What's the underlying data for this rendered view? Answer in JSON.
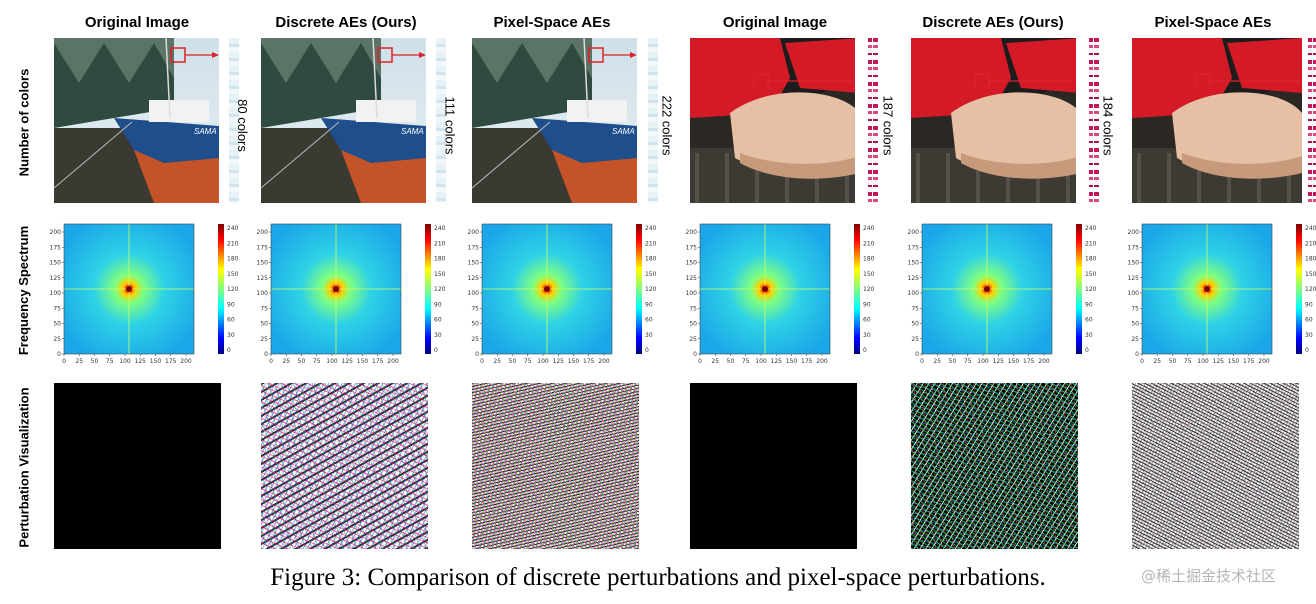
{
  "columns": [
    {
      "title": "Original Image",
      "color_count": "80 colors"
    },
    {
      "title": "Discrete AEs (Ours)",
      "color_count": "111 colors"
    },
    {
      "title": "Pixel-Space AEs",
      "color_count": "222 colors"
    },
    {
      "title": "Original Image",
      "color_count": "187 colors"
    },
    {
      "title": "Discrete AEs (Ours)",
      "color_count": "184 colors"
    },
    {
      "title": "Pixel-Space AEs",
      "color_count": ""
    }
  ],
  "row_labels": [
    "Number of colors",
    "Frequency Spectrum",
    "Perturbation Visualization"
  ],
  "ship_name_text": "SAMA",
  "spectrum": {
    "y_ticks": [
      "0",
      "25",
      "50",
      "75",
      "100",
      "125",
      "150",
      "175",
      "200"
    ],
    "x_ticks": [
      "0",
      "25",
      "50",
      "75",
      "100",
      "125",
      "150",
      "175",
      "200"
    ],
    "colorbar_ticks": [
      "240",
      "210",
      "180",
      "150",
      "120",
      "90",
      "60",
      "30",
      "0"
    ],
    "colormap": "jet"
  },
  "caption": "Figure 3: Comparison of discrete perturbations and pixel-space perturbations.",
  "watermark": "@稀土掘金技术社区",
  "colors": {
    "arrow": "#e0202a",
    "ship_hull": "#1e4f8c",
    "shirt": "#d41a26",
    "background": "#ffffff"
  }
}
